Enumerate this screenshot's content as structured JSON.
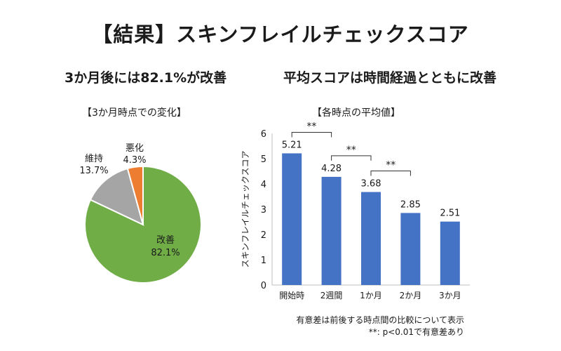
{
  "title": "【結果】スキンフレイルチェックスコア",
  "left": {
    "heading": "3か月後には82.1%が改善",
    "caption": "【3か月時点での変化】"
  },
  "right": {
    "heading": "平均スコアは時間経過とともに改善",
    "caption": "【各時点の平均値】"
  },
  "notes": {
    "line1": "有意差は前後する時点間の比較について表示",
    "line2": "**: p<0.01で有意差あり"
  },
  "colors": {
    "improved": "#70ad47",
    "maintained": "#a5a5a5",
    "worsened": "#ed7d31",
    "bar": "#4472c4"
  },
  "chart_data": [
    {
      "type": "pie",
      "title": "【3か月時点での変化】",
      "slices": [
        {
          "label": "改善",
          "value": 82.1,
          "value_label": "82.1%"
        },
        {
          "label": "維持",
          "value": 13.7,
          "value_label": "13.7%"
        },
        {
          "label": "悪化",
          "value": 4.3,
          "value_label": "4.3%"
        }
      ]
    },
    {
      "type": "bar",
      "title": "【各時点の平均値】",
      "categories": [
        "開始時",
        "2週間",
        "1か月",
        "2か月",
        "3か月"
      ],
      "values": [
        5.21,
        4.28,
        3.68,
        2.85,
        2.51
      ],
      "value_labels": [
        "5.21",
        "4.28",
        "3.68",
        "2.85",
        "2.51"
      ],
      "ylabel": "スキンフレイルチェックスコア",
      "ylim": [
        0,
        6
      ],
      "yticks": [
        0,
        1,
        2,
        3,
        4,
        5,
        6
      ],
      "significance": [
        {
          "from": 0,
          "to": 1,
          "label": "**"
        },
        {
          "from": 1,
          "to": 2,
          "label": "**"
        },
        {
          "from": 2,
          "to": 3,
          "label": "**"
        }
      ]
    }
  ]
}
